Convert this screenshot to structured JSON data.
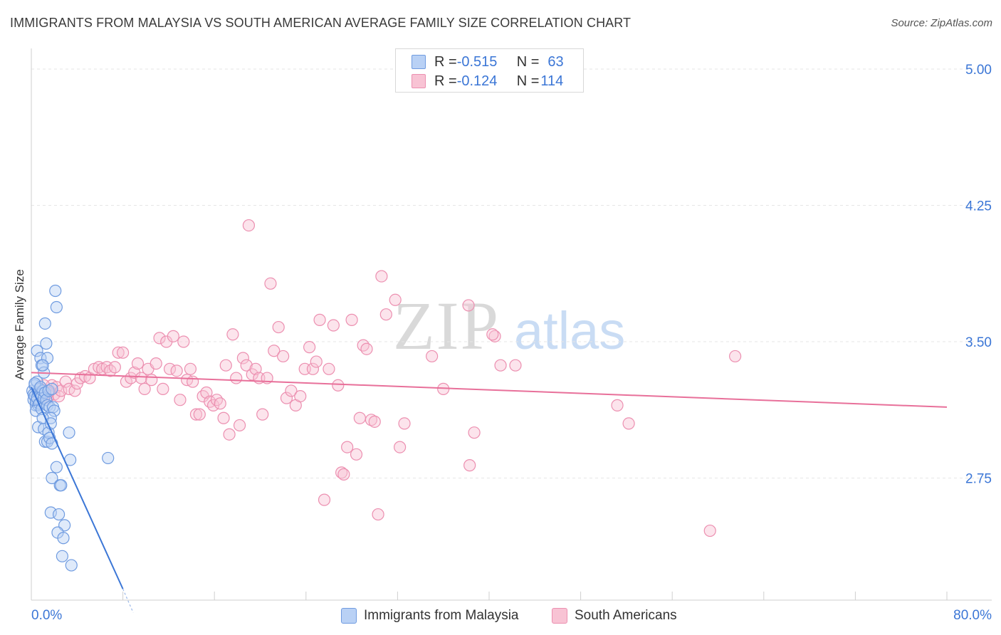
{
  "title": "IMMIGRANTS FROM MALAYSIA VS SOUTH AMERICAN AVERAGE FAMILY SIZE CORRELATION CHART",
  "source": "Source: ZipAtlas.com",
  "watermark": {
    "zip": "ZIP",
    "atlas": "atlas"
  },
  "colors": {
    "blue": "#3b76d6",
    "blue_fill": "#b9d1f5",
    "blue_stroke": "#6f9be0",
    "pink": "#e8709a",
    "pink_fill": "#f8c3d4",
    "pink_stroke": "#ec8fb0",
    "tick_text": "#3b76d6"
  },
  "legend": {
    "rows": [
      {
        "r_label": "R = ",
        "r_value": "-0.515",
        "n_label": "N = ",
        "n_value": "63"
      },
      {
        "r_label": "R = ",
        "r_value": "-0.124",
        "n_label": "N = ",
        "n_value": "114"
      }
    ]
  },
  "chart_data": {
    "type": "scatter",
    "title": "IMMIGRANTS FROM MALAYSIA VS SOUTH AMERICAN AVERAGE FAMILY SIZE CORRELATION CHART",
    "xlabel": "",
    "ylabel": "Average Family Size",
    "xlim": [
      0,
      80
    ],
    "ylim": [
      2.0,
      5.0
    ],
    "x_tick_labels": [
      "0.0%",
      "80.0%"
    ],
    "y_ticks": [
      5.0,
      4.25,
      3.5,
      2.75
    ],
    "y_tick_labels": [
      "5.00",
      "4.25",
      "3.50",
      "2.75"
    ],
    "series": [
      {
        "name": "Immigrants from Malaysia",
        "color": "blue",
        "r": -0.515,
        "n": 63,
        "trend": {
          "x": [
            0,
            8.0
          ],
          "y": [
            3.25,
            2.14
          ],
          "dash_x": [
            8.0,
            8.9
          ],
          "dash_y": [
            2.14,
            2.01
          ]
        },
        "points": [
          [
            0.1,
            3.23
          ],
          [
            0.2,
            3.18
          ],
          [
            0.3,
            3.26
          ],
          [
            0.2,
            3.21
          ],
          [
            0.4,
            3.15
          ],
          [
            0.5,
            3.28
          ],
          [
            0.3,
            3.2
          ],
          [
            0.6,
            3.22
          ],
          [
            0.4,
            3.17
          ],
          [
            0.7,
            3.24
          ],
          [
            0.5,
            3.19
          ],
          [
            0.8,
            3.21
          ],
          [
            0.3,
            3.27
          ],
          [
            0.6,
            3.15
          ],
          [
            0.9,
            3.2
          ],
          [
            1.0,
            3.23
          ],
          [
            0.7,
            3.16
          ],
          [
            1.1,
            3.19
          ],
          [
            0.8,
            3.25
          ],
          [
            1.2,
            3.22
          ],
          [
            0.4,
            3.12
          ],
          [
            0.9,
            3.13
          ],
          [
            1.3,
            3.18
          ],
          [
            1.5,
            3.23
          ],
          [
            1.4,
            3.15
          ],
          [
            1.6,
            3.14
          ],
          [
            1.8,
            3.24
          ],
          [
            1.9,
            3.14
          ],
          [
            2.0,
            3.12
          ],
          [
            1.7,
            3.08
          ],
          [
            0.5,
            3.45
          ],
          [
            0.8,
            3.41
          ],
          [
            0.9,
            3.37
          ],
          [
            1.1,
            3.33
          ],
          [
            1.3,
            3.49
          ],
          [
            1.4,
            3.41
          ],
          [
            1.0,
            3.37
          ],
          [
            1.2,
            3.6
          ],
          [
            2.1,
            3.78
          ],
          [
            2.2,
            3.69
          ],
          [
            0.6,
            3.03
          ],
          [
            1.0,
            3.08
          ],
          [
            1.1,
            3.02
          ],
          [
            1.2,
            2.95
          ],
          [
            1.4,
            2.95
          ],
          [
            1.5,
            3.0
          ],
          [
            1.7,
            3.05
          ],
          [
            1.6,
            2.97
          ],
          [
            1.8,
            2.94
          ],
          [
            3.3,
            3.0
          ],
          [
            3.4,
            2.85
          ],
          [
            6.7,
            2.86
          ],
          [
            2.2,
            2.81
          ],
          [
            1.8,
            2.75
          ],
          [
            2.5,
            2.71
          ],
          [
            2.6,
            2.71
          ],
          [
            1.7,
            2.56
          ],
          [
            2.4,
            2.55
          ],
          [
            2.9,
            2.49
          ],
          [
            2.3,
            2.45
          ],
          [
            2.8,
            2.42
          ],
          [
            2.7,
            2.32
          ],
          [
            3.5,
            2.27
          ]
        ]
      },
      {
        "name": "South Americans",
        "color": "pink",
        "r": -0.124,
        "n": 114,
        "trend": {
          "x": [
            0,
            80
          ],
          "y": [
            3.33,
            3.14
          ]
        },
        "points": [
          [
            0.8,
            3.24
          ],
          [
            1.0,
            3.2
          ],
          [
            1.2,
            3.22
          ],
          [
            1.4,
            3.19
          ],
          [
            1.6,
            3.23
          ],
          [
            1.8,
            3.26
          ],
          [
            2.0,
            3.21
          ],
          [
            2.2,
            3.25
          ],
          [
            2.4,
            3.2
          ],
          [
            2.6,
            3.23
          ],
          [
            0.6,
            3.18
          ],
          [
            1.1,
            3.26
          ],
          [
            1.5,
            3.22
          ],
          [
            3.0,
            3.28
          ],
          [
            3.3,
            3.24
          ],
          [
            3.8,
            3.23
          ],
          [
            4.0,
            3.27
          ],
          [
            4.3,
            3.3
          ],
          [
            4.7,
            3.31
          ],
          [
            5.1,
            3.3
          ],
          [
            5.5,
            3.35
          ],
          [
            5.9,
            3.36
          ],
          [
            6.2,
            3.35
          ],
          [
            6.6,
            3.36
          ],
          [
            6.9,
            3.34
          ],
          [
            7.3,
            3.36
          ],
          [
            7.6,
            3.44
          ],
          [
            8.0,
            3.44
          ],
          [
            8.3,
            3.28
          ],
          [
            8.7,
            3.3
          ],
          [
            9.0,
            3.33
          ],
          [
            9.3,
            3.38
          ],
          [
            9.6,
            3.3
          ],
          [
            9.9,
            3.24
          ],
          [
            10.2,
            3.35
          ],
          [
            10.5,
            3.29
          ],
          [
            10.9,
            3.38
          ],
          [
            11.2,
            3.52
          ],
          [
            11.5,
            3.24
          ],
          [
            11.8,
            3.5
          ],
          [
            12.1,
            3.35
          ],
          [
            12.4,
            3.53
          ],
          [
            12.7,
            3.34
          ],
          [
            13.0,
            3.18
          ],
          [
            13.3,
            3.5
          ],
          [
            13.6,
            3.29
          ],
          [
            13.9,
            3.35
          ],
          [
            14.1,
            3.28
          ],
          [
            14.4,
            3.1
          ],
          [
            14.7,
            3.1
          ],
          [
            15.0,
            3.2
          ],
          [
            15.3,
            3.22
          ],
          [
            15.6,
            3.17
          ],
          [
            15.9,
            3.15
          ],
          [
            16.2,
            3.18
          ],
          [
            16.5,
            3.16
          ],
          [
            16.8,
            3.08
          ],
          [
            17.0,
            3.37
          ],
          [
            17.3,
            2.99
          ],
          [
            17.6,
            3.54
          ],
          [
            17.9,
            3.3
          ],
          [
            18.2,
            3.04
          ],
          [
            18.5,
            3.41
          ],
          [
            18.8,
            3.37
          ],
          [
            19.0,
            4.14
          ],
          [
            19.3,
            3.32
          ],
          [
            19.6,
            3.35
          ],
          [
            19.9,
            3.3
          ],
          [
            20.2,
            3.1
          ],
          [
            20.6,
            3.3
          ],
          [
            20.9,
            3.82
          ],
          [
            21.2,
            3.45
          ],
          [
            21.6,
            3.58
          ],
          [
            22.0,
            3.42
          ],
          [
            22.3,
            3.19
          ],
          [
            22.7,
            3.23
          ],
          [
            23.1,
            3.15
          ],
          [
            23.5,
            3.2
          ],
          [
            23.9,
            3.35
          ],
          [
            24.3,
            3.47
          ],
          [
            24.6,
            3.35
          ],
          [
            24.9,
            3.39
          ],
          [
            25.2,
            3.62
          ],
          [
            25.6,
            2.63
          ],
          [
            26.0,
            3.35
          ],
          [
            26.4,
            3.59
          ],
          [
            26.8,
            3.26
          ],
          [
            27.1,
            2.78
          ],
          [
            27.3,
            2.77
          ],
          [
            27.6,
            2.92
          ],
          [
            28.0,
            3.62
          ],
          [
            28.4,
            2.88
          ],
          [
            28.7,
            3.08
          ],
          [
            29.0,
            3.48
          ],
          [
            29.3,
            3.46
          ],
          [
            29.7,
            3.07
          ],
          [
            30.0,
            3.06
          ],
          [
            30.3,
            2.55
          ],
          [
            30.6,
            3.86
          ],
          [
            31.0,
            3.65
          ],
          [
            31.8,
            3.73
          ],
          [
            32.2,
            2.92
          ],
          [
            32.6,
            3.05
          ],
          [
            35.0,
            3.42
          ],
          [
            36.0,
            3.24
          ],
          [
            38.7,
            3.0
          ],
          [
            38.3,
            2.82
          ],
          [
            38.2,
            3.7
          ],
          [
            40.5,
            3.53
          ],
          [
            40.3,
            3.54
          ],
          [
            41.0,
            3.37
          ],
          [
            42.3,
            3.37
          ],
          [
            51.2,
            3.15
          ],
          [
            52.2,
            3.05
          ],
          [
            59.3,
            2.46
          ],
          [
            61.5,
            3.42
          ]
        ]
      }
    ]
  }
}
